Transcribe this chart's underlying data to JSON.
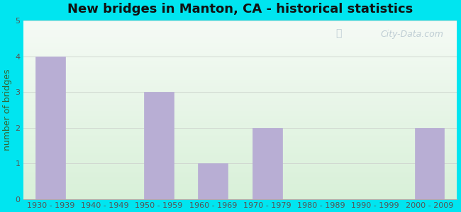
{
  "title": "New bridges in Manton, CA - historical statistics",
  "categories": [
    "1930 - 1939",
    "1940 - 1949",
    "1950 - 1959",
    "1960 - 1969",
    "1970 - 1979",
    "1980 - 1989",
    "1990 - 1999",
    "2000 - 2009"
  ],
  "values": [
    4,
    0,
    3,
    1,
    2,
    0,
    0,
    2
  ],
  "bar_color": "#b8aed4",
  "bar_edge_color": "#b8aed4",
  "ylabel": "number of bridges",
  "ylim": [
    0,
    5
  ],
  "yticks": [
    0,
    1,
    2,
    3,
    4,
    5
  ],
  "background_outer": "#00e5f0",
  "background_inner_top": "#f5faf5",
  "background_inner_bottom": "#d8f0d8",
  "title_fontsize": 13,
  "ylabel_fontsize": 9,
  "tick_fontsize": 8,
  "watermark_text": "City-Data.com",
  "watermark_color": "#b8c8d0",
  "grid_color": "#d0d8d0",
  "ylabel_color": "#336633",
  "tick_color": "#555555",
  "spine_color": "#aaaaaa"
}
